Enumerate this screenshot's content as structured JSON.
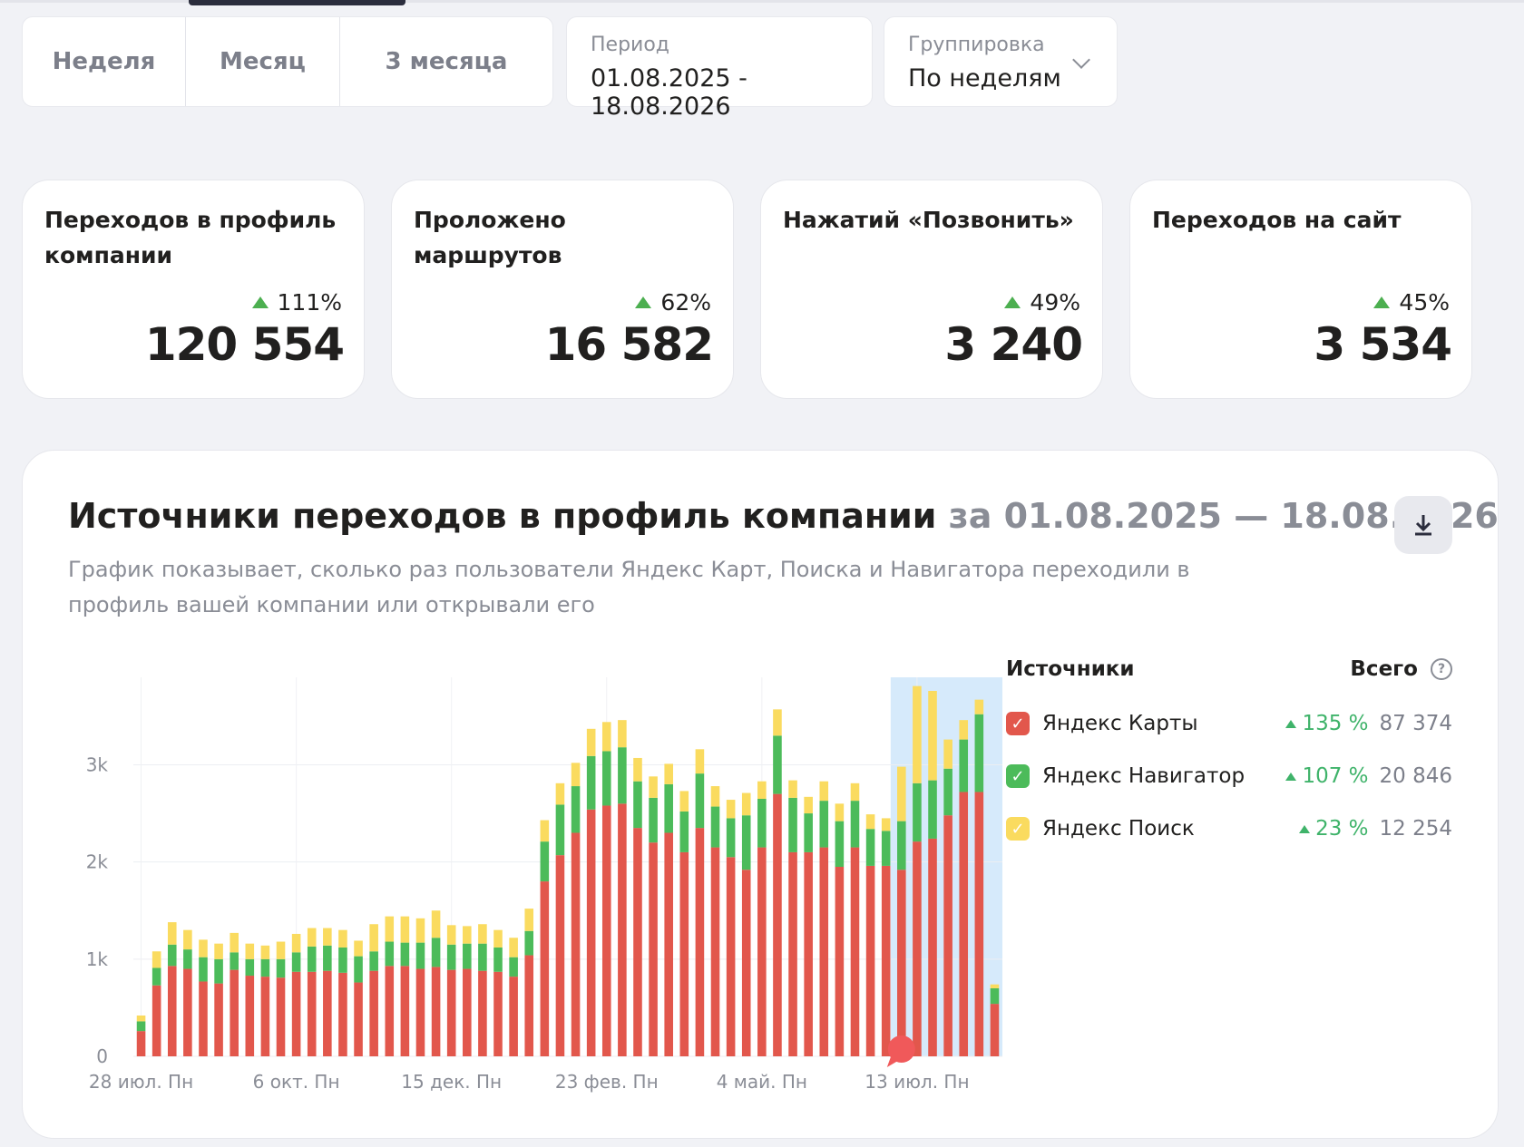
{
  "tabs": [
    "Неделя",
    "Месяц",
    "3 месяца"
  ],
  "period": {
    "label": "Период",
    "value": "01.08.2025 - 18.08.2026"
  },
  "grouping": {
    "label": "Группировка",
    "value": "По неделям"
  },
  "cards": [
    {
      "title": "Переходов в профиль компании",
      "delta": "111%",
      "value": "120 554"
    },
    {
      "title": "Проложено маршрутов",
      "delta": "62%",
      "value": "16 582"
    },
    {
      "title": "Нажатий «Позвонить»",
      "delta": "49%",
      "value": "3 240"
    },
    {
      "title": "Переходов на сайт",
      "delta": "45%",
      "value": "3 534"
    }
  ],
  "panel": {
    "title": "Источники переходов в профиль компании",
    "title_dates": "за 01.08.2025 — 18.08.2026",
    "description": "График показывает, сколько раз пользователи Яндекс Карт, Поиска и Навигатора переходили в профиль вашей компании или открывали его"
  },
  "legend": {
    "header": "Источники",
    "total_header": "Всего",
    "items": [
      {
        "name": "Яндекс Карты",
        "change": "135 %",
        "total": "87 374",
        "color": "#e2574c"
      },
      {
        "name": "Яндекс Навигатор",
        "change": "107 %",
        "total": "20 846",
        "color": "#4cbb5a"
      },
      {
        "name": "Яндекс Поиск",
        "change": "23 %",
        "total": "12 254",
        "color": "#fadb5f"
      }
    ]
  },
  "chart_data": {
    "type": "bar",
    "stacked": true,
    "x_tick_labels": [
      "28 июл. Пн",
      "6 окт. Пн",
      "15 дек. Пн",
      "23 фев. Пн",
      "4 май. Пн",
      "13 июл. Пн"
    ],
    "y_tick_labels": [
      "0",
      "1k",
      "2k",
      "3k"
    ],
    "ylim": [
      0,
      3900
    ],
    "highlight_range_start_index": 49,
    "marker_index": 49,
    "series": [
      {
        "name": "Яндекс Карты",
        "color": "#e2574c",
        "values": [
          260,
          730,
          930,
          900,
          770,
          750,
          890,
          830,
          820,
          810,
          870,
          870,
          880,
          860,
          760,
          880,
          930,
          930,
          900,
          920,
          890,
          900,
          880,
          870,
          820,
          1040,
          1800,
          2070,
          2300,
          2540,
          2580,
          2600,
          2350,
          2200,
          2300,
          2100,
          2350,
          2150,
          2050,
          1920,
          2150,
          2700,
          2100,
          2100,
          2150,
          1950,
          2150,
          1960,
          1960,
          1920,
          2210,
          2240,
          2480,
          2720,
          2720,
          540
        ]
      },
      {
        "name": "Яндекс Навигатор",
        "color": "#4cbb5a",
        "values": [
          100,
          180,
          220,
          200,
          250,
          250,
          180,
          170,
          180,
          190,
          200,
          260,
          260,
          260,
          270,
          200,
          250,
          240,
          270,
          300,
          260,
          260,
          280,
          250,
          200,
          250,
          410,
          520,
          480,
          550,
          560,
          580,
          480,
          460,
          500,
          420,
          560,
          420,
          400,
          560,
          500,
          600,
          560,
          400,
          480,
          470,
          480,
          380,
          360,
          500,
          600,
          600,
          480,
          540,
          800,
          160
        ]
      },
      {
        "name": "Яндекс Поиск",
        "color": "#fadb5f",
        "values": [
          60,
          170,
          230,
          200,
          180,
          160,
          200,
          160,
          140,
          180,
          190,
          190,
          180,
          180,
          160,
          280,
          260,
          270,
          250,
          280,
          200,
          180,
          200,
          180,
          200,
          230,
          220,
          220,
          240,
          280,
          300,
          280,
          240,
          220,
          210,
          210,
          250,
          210,
          190,
          230,
          180,
          270,
          180,
          170,
          200,
          180,
          180,
          150,
          130,
          560,
          1000,
          920,
          300,
          200,
          150,
          40
        ]
      }
    ]
  }
}
